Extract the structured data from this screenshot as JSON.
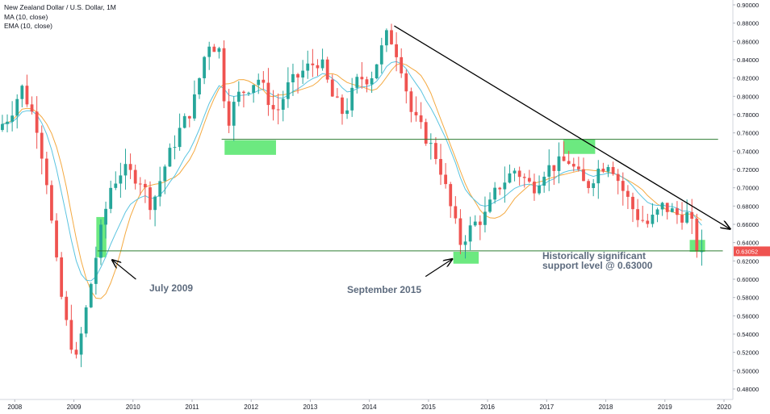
{
  "header": {
    "title": "New Zealand Dollar / U.S. Dollar, 1M",
    "ma_label": "MA (10, close)",
    "ema_label": "EMA (10, close)"
  },
  "annotations": {
    "july_2009": "July 2009",
    "september_2015": "September 2015",
    "support_line1": "Historically significant",
    "support_line2": "support level @ 0.63000"
  },
  "price_tag": "0.63052",
  "colors": {
    "up": "#26a69a",
    "down": "#ef5350",
    "ma": "#f4a940",
    "ema": "#5bc4e0",
    "trend": "#000000",
    "level": "#2e7d32",
    "zone": "#52e56a"
  },
  "chart_data": {
    "type": "candlestick",
    "title": "New Zealand Dollar / U.S. Dollar, 1M",
    "x_ticks": [
      "2008",
      "2009",
      "2010",
      "2011",
      "2012",
      "2013",
      "2014",
      "2015",
      "2016",
      "2017",
      "2018",
      "2019",
      "2020"
    ],
    "y_ticks": [
      "0.90000",
      "0.88000",
      "0.86000",
      "0.84000",
      "0.82000",
      "0.80000",
      "0.78000",
      "0.76000",
      "0.74000",
      "0.72000",
      "0.70000",
      "0.68000",
      "0.66000",
      "0.64000",
      "0.62000",
      "0.60000",
      "0.58000",
      "0.56000",
      "0.54000",
      "0.52000",
      "0.50000",
      "0.48000"
    ],
    "ylim": [
      0.475,
      0.905
    ],
    "xlim": [
      2007.75,
      2020.15
    ],
    "anchors": [
      [
        2007.75,
        0.76
      ],
      [
        2008.0,
        0.78
      ],
      [
        2008.2,
        0.81
      ],
      [
        2008.45,
        0.77
      ],
      [
        2008.62,
        0.71
      ],
      [
        2008.78,
        0.62
      ],
      [
        2008.92,
        0.56
      ],
      [
        2009.12,
        0.51
      ],
      [
        2009.3,
        0.57
      ],
      [
        2009.5,
        0.64
      ],
      [
        2009.7,
        0.7
      ],
      [
        2009.9,
        0.72
      ],
      [
        2010.2,
        0.71
      ],
      [
        2010.4,
        0.68
      ],
      [
        2010.6,
        0.72
      ],
      [
        2010.85,
        0.76
      ],
      [
        2011.1,
        0.79
      ],
      [
        2011.35,
        0.86
      ],
      [
        2011.55,
        0.85
      ],
      [
        2011.67,
        0.77
      ],
      [
        2011.85,
        0.8
      ],
      [
        2012.2,
        0.82
      ],
      [
        2012.5,
        0.78
      ],
      [
        2012.7,
        0.81
      ],
      [
        2013.0,
        0.83
      ],
      [
        2013.25,
        0.84
      ],
      [
        2013.45,
        0.8
      ],
      [
        2013.65,
        0.78
      ],
      [
        2013.9,
        0.82
      ],
      [
        2014.1,
        0.82
      ],
      [
        2014.4,
        0.87
      ],
      [
        2014.6,
        0.84
      ],
      [
        2014.8,
        0.78
      ],
      [
        2015.0,
        0.76
      ],
      [
        2015.25,
        0.73
      ],
      [
        2015.45,
        0.68
      ],
      [
        2015.62,
        0.64
      ],
      [
        2015.85,
        0.66
      ],
      [
        2016.05,
        0.67
      ],
      [
        2016.25,
        0.7
      ],
      [
        2016.55,
        0.72
      ],
      [
        2016.85,
        0.7
      ],
      [
        2017.05,
        0.72
      ],
      [
        2017.45,
        0.73
      ],
      [
        2017.75,
        0.7
      ],
      [
        2017.95,
        0.72
      ],
      [
        2018.15,
        0.73
      ],
      [
        2018.35,
        0.7
      ],
      [
        2018.6,
        0.67
      ],
      [
        2018.8,
        0.66
      ],
      [
        2019.05,
        0.68
      ],
      [
        2019.3,
        0.67
      ],
      [
        2019.5,
        0.67
      ],
      [
        2019.62,
        0.635
      ]
    ],
    "trendline": [
      [
        2014.42,
        0.877
      ],
      [
        2020.1,
        0.655
      ]
    ],
    "resistance_line": {
      "x": [
        2011.5,
        2019.9
      ],
      "y": 0.753
    },
    "support_line": {
      "x": [
        2009.4,
        2019.98
      ],
      "y": 0.631
    },
    "zones": [
      {
        "x": [
          2011.55,
          2012.42
        ],
        "y": [
          0.736,
          0.752
        ]
      },
      {
        "x": [
          2017.28,
          2017.82
        ],
        "y": [
          0.737,
          0.753
        ]
      },
      {
        "x": [
          2009.38,
          2009.55
        ],
        "y": [
          0.624,
          0.668
        ]
      },
      {
        "x": [
          2015.42,
          2015.85
        ],
        "y": [
          0.617,
          0.63
        ]
      },
      {
        "x": [
          2019.42,
          2019.68
        ],
        "y": [
          0.63,
          0.643
        ]
      }
    ],
    "arrows": [
      {
        "from": [
          2010.05,
          0.6
        ],
        "to": [
          2009.65,
          0.621
        ]
      },
      {
        "from": [
          2014.95,
          0.603
        ],
        "to": [
          2015.4,
          0.622
        ]
      }
    ],
    "last_price": 0.63052
  }
}
